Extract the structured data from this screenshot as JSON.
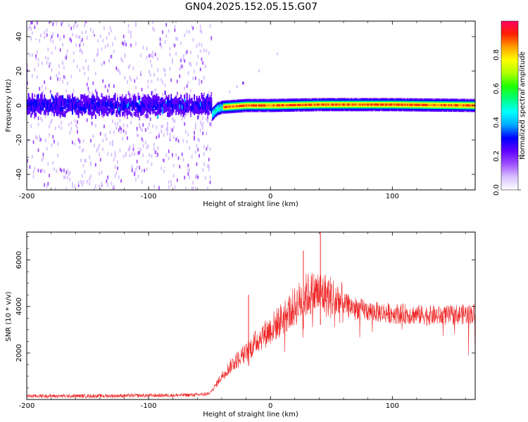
{
  "figure_title": "GN04.2025.152.05.15.G07",
  "colors": {
    "snr_line": "#ee2222",
    "colormap": [
      "#ffffff",
      "#d7c0ff",
      "#a050ff",
      "#6000ff",
      "#0000ff",
      "#00aaff",
      "#00ffff",
      "#00ff80",
      "#20ff00",
      "#b0ff00",
      "#ffff00",
      "#ffa000",
      "#ff2000",
      "#ff0060"
    ]
  },
  "chart_data": [
    {
      "type": "heatmap",
      "title": "",
      "xlabel": "Height of straight line (km)",
      "ylabel": "Frequency (Hz)",
      "xlim": [
        -200,
        168
      ],
      "ylim": [
        -49,
        49
      ],
      "xticks": [
        -200,
        -100,
        0,
        100
      ],
      "xtick_labels": [
        "-200",
        "-100",
        "0",
        "100"
      ],
      "yticks": [
        -40,
        -20,
        0,
        20,
        40
      ],
      "ytick_labels": [
        "-40",
        "-20",
        "0",
        "20",
        "40"
      ],
      "colorbar": {
        "label": "Normalized spectral amplitude",
        "range": [
          0,
          1
        ],
        "ticks": [
          0.0,
          0.2,
          0.4,
          0.6,
          0.8
        ],
        "tick_labels": [
          "0.0",
          "0.2",
          "0.4",
          "0.6",
          "0.8"
        ]
      },
      "grid": false,
      "noise_region_x": [
        -200,
        -48
      ],
      "ridge_points": [
        {
          "x": -48,
          "freq": -5
        },
        {
          "x": -44,
          "freq": -2
        },
        {
          "x": -40,
          "freq": -1
        },
        {
          "x": -20,
          "freq": 0
        },
        {
          "x": 0,
          "freq": 0
        },
        {
          "x": 40,
          "freq": 0.5
        },
        {
          "x": 100,
          "freq": 0.5
        },
        {
          "x": 168,
          "freq": 0
        }
      ]
    },
    {
      "type": "line",
      "title": "",
      "xlabel": "Height of straight line (km)",
      "ylabel": "SNR (10 * v/v)",
      "xlim": [
        -200,
        168
      ],
      "ylim": [
        0,
        7200
      ],
      "xticks": [
        -200,
        -100,
        0,
        100
      ],
      "xtick_labels": [
        "-200",
        "-100",
        "0",
        "100"
      ],
      "yticks": [
        2000,
        4000,
        6000
      ],
      "ytick_labels": [
        "2000",
        "4000",
        "6000"
      ],
      "grid": false,
      "series": [
        {
          "x": [
            -200,
            -150,
            -100,
            -80,
            -60,
            -50,
            -45,
            -40,
            -30,
            -20,
            -10,
            0,
            10,
            20,
            30,
            40,
            50,
            60,
            80,
            100,
            120,
            140,
            168
          ],
          "values": [
            150,
            150,
            170,
            180,
            200,
            250,
            600,
            1000,
            1600,
            2000,
            2600,
            3000,
            3500,
            4000,
            4500,
            4600,
            4400,
            4100,
            3800,
            3700,
            3650,
            3600,
            3700
          ]
        }
      ],
      "peak_points": [
        {
          "x": -18,
          "value": 4500
        },
        {
          "x": 27,
          "value": 6400
        },
        {
          "x": 41,
          "value": 7200
        }
      ]
    }
  ]
}
